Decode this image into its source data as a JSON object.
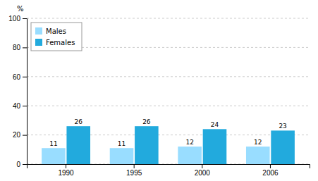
{
  "chart_data": {
    "type": "bar",
    "categories": [
      "1990",
      "1995",
      "2000",
      "2006"
    ],
    "series": [
      {
        "name": "Males",
        "color": "#99DDFF",
        "values": [
          11,
          11,
          12,
          12
        ]
      },
      {
        "name": "Females",
        "color": "#22AADD",
        "values": [
          26,
          26,
          24,
          23
        ]
      }
    ],
    "ylabel": "%",
    "ylim": [
      0,
      100
    ],
    "yticks": [
      0,
      20,
      40,
      60,
      80,
      100
    ],
    "grid": true,
    "legend": "upper left",
    "data_labels": true
  }
}
